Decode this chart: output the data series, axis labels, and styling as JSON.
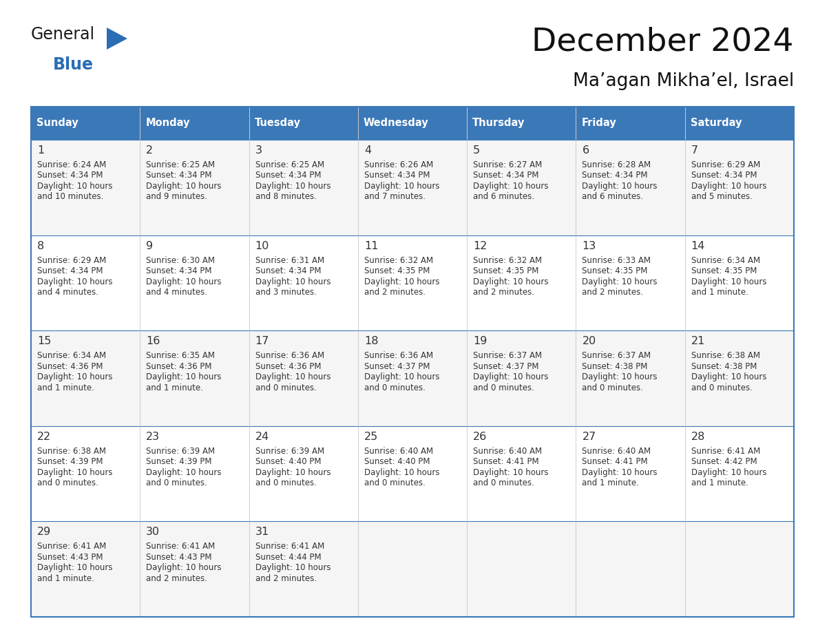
{
  "title": "December 2024",
  "subtitle": "Ma’agan Mikha’el, Israel",
  "days_of_week": [
    "Sunday",
    "Monday",
    "Tuesday",
    "Wednesday",
    "Thursday",
    "Friday",
    "Saturday"
  ],
  "header_bg": "#3b78b8",
  "header_text_color": "#ffffff",
  "cell_bg_odd": "#f5f5f5",
  "cell_bg_even": "#ffffff",
  "row_separator_color": "#3b78b8",
  "col_separator_color": "#cccccc",
  "text_color": "#333333",
  "title_color": "#111111",
  "subtitle_color": "#111111",
  "calendar_data": [
    [
      {
        "day": 1,
        "sunrise": "6:24 AM",
        "sunset": "4:34 PM",
        "daylight_line2": "and 10 minutes."
      },
      {
        "day": 2,
        "sunrise": "6:25 AM",
        "sunset": "4:34 PM",
        "daylight_line2": "and 9 minutes."
      },
      {
        "day": 3,
        "sunrise": "6:25 AM",
        "sunset": "4:34 PM",
        "daylight_line2": "and 8 minutes."
      },
      {
        "day": 4,
        "sunrise": "6:26 AM",
        "sunset": "4:34 PM",
        "daylight_line2": "and 7 minutes."
      },
      {
        "day": 5,
        "sunrise": "6:27 AM",
        "sunset": "4:34 PM",
        "daylight_line2": "and 6 minutes."
      },
      {
        "day": 6,
        "sunrise": "6:28 AM",
        "sunset": "4:34 PM",
        "daylight_line2": "and 6 minutes."
      },
      {
        "day": 7,
        "sunrise": "6:29 AM",
        "sunset": "4:34 PM",
        "daylight_line2": "and 5 minutes."
      }
    ],
    [
      {
        "day": 8,
        "sunrise": "6:29 AM",
        "sunset": "4:34 PM",
        "daylight_line2": "and 4 minutes."
      },
      {
        "day": 9,
        "sunrise": "6:30 AM",
        "sunset": "4:34 PM",
        "daylight_line2": "and 4 minutes."
      },
      {
        "day": 10,
        "sunrise": "6:31 AM",
        "sunset": "4:34 PM",
        "daylight_line2": "and 3 minutes."
      },
      {
        "day": 11,
        "sunrise": "6:32 AM",
        "sunset": "4:35 PM",
        "daylight_line2": "and 2 minutes."
      },
      {
        "day": 12,
        "sunrise": "6:32 AM",
        "sunset": "4:35 PM",
        "daylight_line2": "and 2 minutes."
      },
      {
        "day": 13,
        "sunrise": "6:33 AM",
        "sunset": "4:35 PM",
        "daylight_line2": "and 2 minutes."
      },
      {
        "day": 14,
        "sunrise": "6:34 AM",
        "sunset": "4:35 PM",
        "daylight_line2": "and 1 minute."
      }
    ],
    [
      {
        "day": 15,
        "sunrise": "6:34 AM",
        "sunset": "4:36 PM",
        "daylight_line2": "and 1 minute."
      },
      {
        "day": 16,
        "sunrise": "6:35 AM",
        "sunset": "4:36 PM",
        "daylight_line2": "and 1 minute."
      },
      {
        "day": 17,
        "sunrise": "6:36 AM",
        "sunset": "4:36 PM",
        "daylight_line2": "and 0 minutes."
      },
      {
        "day": 18,
        "sunrise": "6:36 AM",
        "sunset": "4:37 PM",
        "daylight_line2": "and 0 minutes."
      },
      {
        "day": 19,
        "sunrise": "6:37 AM",
        "sunset": "4:37 PM",
        "daylight_line2": "and 0 minutes."
      },
      {
        "day": 20,
        "sunrise": "6:37 AM",
        "sunset": "4:38 PM",
        "daylight_line2": "and 0 minutes."
      },
      {
        "day": 21,
        "sunrise": "6:38 AM",
        "sunset": "4:38 PM",
        "daylight_line2": "and 0 minutes."
      }
    ],
    [
      {
        "day": 22,
        "sunrise": "6:38 AM",
        "sunset": "4:39 PM",
        "daylight_line2": "and 0 minutes."
      },
      {
        "day": 23,
        "sunrise": "6:39 AM",
        "sunset": "4:39 PM",
        "daylight_line2": "and 0 minutes."
      },
      {
        "day": 24,
        "sunrise": "6:39 AM",
        "sunset": "4:40 PM",
        "daylight_line2": "and 0 minutes."
      },
      {
        "day": 25,
        "sunrise": "6:40 AM",
        "sunset": "4:40 PM",
        "daylight_line2": "and 0 minutes."
      },
      {
        "day": 26,
        "sunrise": "6:40 AM",
        "sunset": "4:41 PM",
        "daylight_line2": "and 0 minutes."
      },
      {
        "day": 27,
        "sunrise": "6:40 AM",
        "sunset": "4:41 PM",
        "daylight_line2": "and 1 minute."
      },
      {
        "day": 28,
        "sunrise": "6:41 AM",
        "sunset": "4:42 PM",
        "daylight_line2": "and 1 minute."
      }
    ],
    [
      {
        "day": 29,
        "sunrise": "6:41 AM",
        "sunset": "4:43 PM",
        "daylight_line2": "and 1 minute."
      },
      {
        "day": 30,
        "sunrise": "6:41 AM",
        "sunset": "4:43 PM",
        "daylight_line2": "and 2 minutes."
      },
      {
        "day": 31,
        "sunrise": "6:41 AM",
        "sunset": "4:44 PM",
        "daylight_line2": "and 2 minutes."
      },
      null,
      null,
      null,
      null
    ]
  ],
  "logo_general_color": "#1a1a1a",
  "logo_blue_color": "#2a6db5",
  "logo_triangle_color": "#2a6db5",
  "fig_width": 11.88,
  "fig_height": 9.18,
  "dpi": 100
}
